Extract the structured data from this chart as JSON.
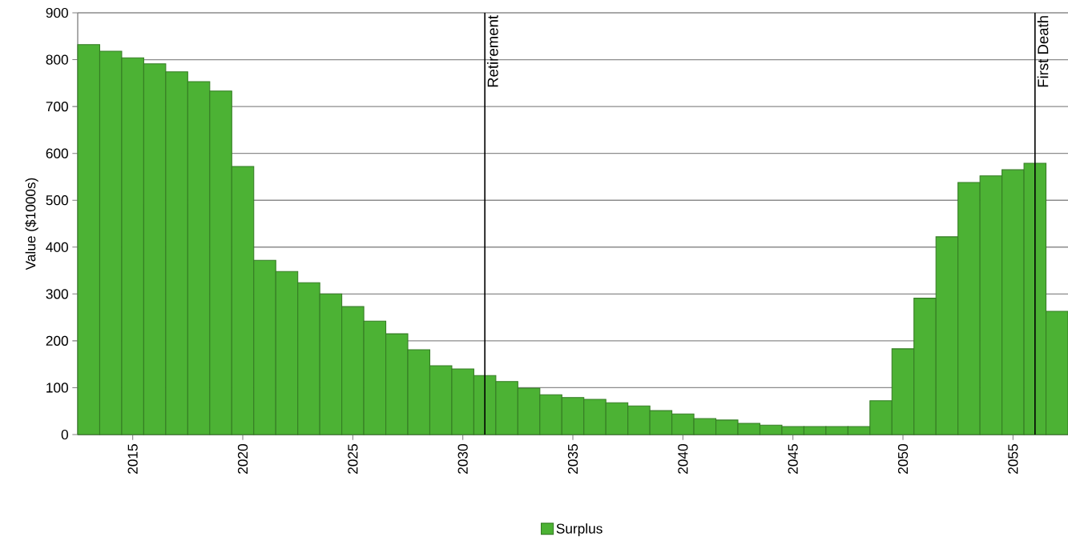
{
  "chart_data": {
    "type": "bar",
    "ylabel": "Value ($1000s)",
    "x": [
      2013,
      2014,
      2015,
      2016,
      2017,
      2018,
      2019,
      2020,
      2021,
      2022,
      2023,
      2024,
      2025,
      2026,
      2027,
      2028,
      2029,
      2030,
      2031,
      2032,
      2033,
      2034,
      2035,
      2036,
      2037,
      2038,
      2039,
      2040,
      2041,
      2042,
      2043,
      2044,
      2045,
      2046,
      2047,
      2048,
      2049,
      2050,
      2051,
      2052,
      2053,
      2054,
      2055,
      2056,
      2057
    ],
    "series": [
      {
        "name": "Surplus",
        "color": "#4cb234",
        "values": [
          832,
          818,
          804,
          791,
          774,
          753,
          733,
          572,
          372,
          348,
          324,
          300,
          273,
          242,
          215,
          181,
          147,
          140,
          126,
          113,
          99,
          85,
          79,
          75,
          68,
          61,
          51,
          44,
          34,
          31,
          24,
          20,
          17,
          17,
          17,
          17,
          72,
          183,
          291,
          422,
          538,
          552,
          565,
          579,
          263
        ]
      }
    ],
    "xlim": [
      2012.5,
      2057.5
    ],
    "xticks": [
      2015,
      2020,
      2025,
      2030,
      2035,
      2040,
      2045,
      2050,
      2055
    ],
    "ylim": [
      0,
      900
    ],
    "yticks": [
      0,
      100,
      200,
      300,
      400,
      500,
      600,
      700,
      800,
      900
    ],
    "grid": "y",
    "legend": "bottom",
    "ref_lines": [
      {
        "axis": "x",
        "value": 2031,
        "label": "Retirement"
      },
      {
        "axis": "x",
        "value": 2056,
        "label": "First Death"
      }
    ]
  }
}
